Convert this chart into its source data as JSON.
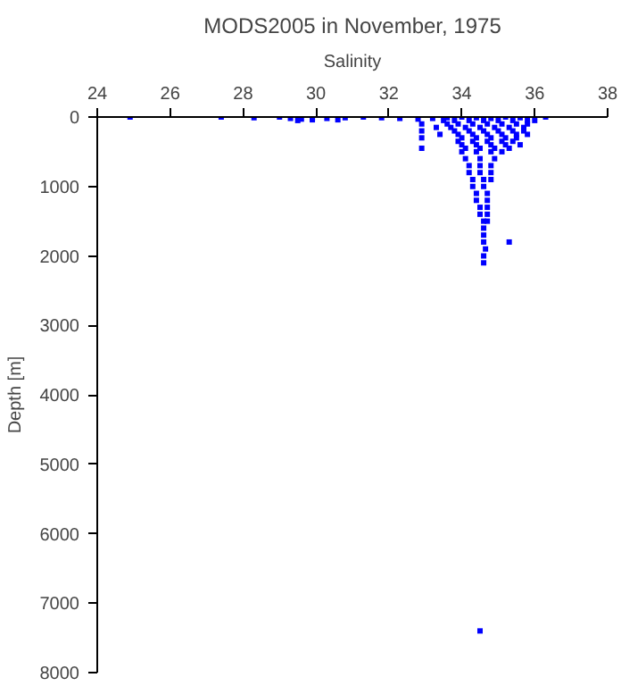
{
  "chart_data": {
    "type": "scatter",
    "title": "MODS2005 in November, 1975",
    "xlabel": "Salinity",
    "ylabel": "Depth [m]",
    "xlim": [
      24,
      38
    ],
    "xticks": [
      24,
      26,
      28,
      30,
      32,
      34,
      36,
      38
    ],
    "ylim": [
      8000,
      0
    ],
    "yticks": [
      0,
      1000,
      2000,
      3000,
      4000,
      5000,
      6000,
      7000,
      8000
    ],
    "grid": false,
    "marker": "square",
    "series": [
      {
        "color": "#0000ff",
        "x": [
          24.9,
          27.4,
          28.3,
          29.0,
          29.3,
          29.6,
          29.9,
          30.3,
          30.8,
          31.3,
          31.8,
          32.3,
          32.8,
          33.2,
          33.6,
          34.0,
          34.4,
          34.8,
          35.2,
          35.6,
          36.3,
          29.5,
          29.9,
          30.6,
          33.5,
          33.8,
          34.2,
          34.6,
          35.0,
          35.4,
          35.8,
          36.0,
          32.9,
          33.6,
          33.9,
          34.3,
          34.7,
          35.1,
          35.5,
          35.8,
          33.3,
          33.7,
          34.1,
          34.5,
          34.9,
          35.3,
          35.7,
          32.9,
          33.8,
          34.2,
          34.6,
          35.0,
          35.4,
          35.7,
          33.4,
          33.9,
          34.3,
          34.7,
          35.1,
          35.5,
          35.8,
          32.9,
          34.0,
          34.4,
          34.8,
          35.2,
          35.5,
          33.9,
          34.3,
          34.7,
          35.1,
          35.4,
          34.0,
          34.4,
          34.8,
          35.2,
          35.6,
          32.9,
          34.1,
          34.5,
          34.9,
          35.3,
          34.0,
          34.4,
          34.8,
          35.1,
          34.1,
          34.5,
          34.9,
          34.2,
          34.5,
          34.8,
          34.2,
          34.5,
          34.8,
          34.3,
          34.6,
          34.8,
          34.3,
          34.6,
          34.4,
          34.7,
          34.4,
          34.7,
          34.5,
          34.7,
          34.5,
          34.7,
          34.6,
          34.7,
          34.6,
          34.6,
          34.6,
          35.3,
          34.65,
          34.6,
          34.6,
          34.5
        ],
        "values": [
          0,
          0,
          10,
          0,
          20,
          30,
          10,
          20,
          10,
          0,
          10,
          20,
          30,
          20,
          10,
          0,
          10,
          20,
          0,
          10,
          0,
          50,
          40,
          40,
          50,
          50,
          50,
          50,
          50,
          50,
          50,
          50,
          100,
          100,
          100,
          100,
          100,
          100,
          100,
          100,
          150,
          150,
          150,
          150,
          150,
          150,
          150,
          200,
          200,
          200,
          200,
          200,
          200,
          200,
          250,
          250,
          250,
          250,
          250,
          250,
          250,
          300,
          300,
          300,
          300,
          300,
          300,
          350,
          350,
          350,
          350,
          350,
          400,
          400,
          400,
          400,
          400,
          450,
          450,
          450,
          450,
          450,
          500,
          500,
          500,
          500,
          600,
          600,
          600,
          700,
          700,
          700,
          800,
          800,
          800,
          900,
          900,
          900,
          1000,
          1000,
          1100,
          1100,
          1200,
          1200,
          1300,
          1300,
          1400,
          1400,
          1500,
          1500,
          1600,
          1700,
          1800,
          1800,
          1900,
          2000,
          2100,
          7400
        ]
      }
    ]
  }
}
